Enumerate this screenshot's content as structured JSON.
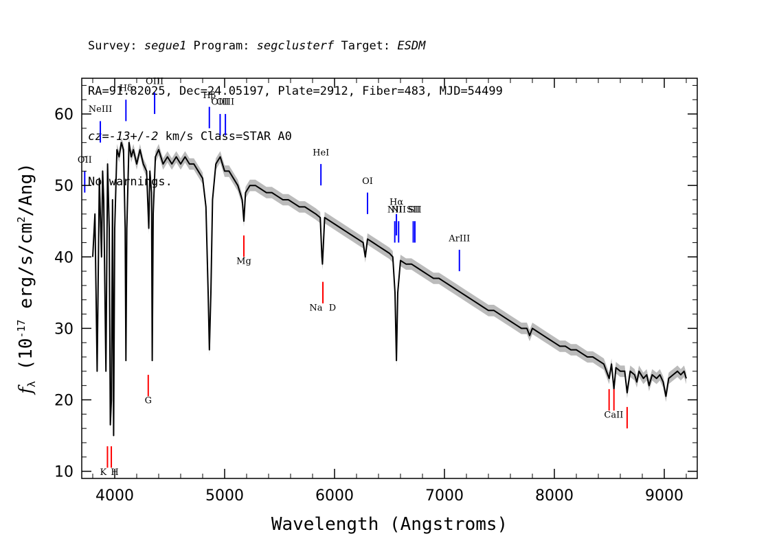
{
  "header": {
    "line1": [
      {
        "text": "Survey: ",
        "italic": false
      },
      {
        "text": "segue1",
        "italic": true
      },
      {
        "text": " Program: ",
        "italic": false
      },
      {
        "text": "segclusterf",
        "italic": true
      },
      {
        "text": " Target: ",
        "italic": false
      },
      {
        "text": "ESDM",
        "italic": true
      }
    ],
    "line2": "RA=91.82025, Dec=24.05197, Plate=2912, Fiber=483, MJD=54499",
    "line3": [
      {
        "text": "cz=",
        "italic": true
      },
      {
        "text": "-13",
        "italic": true
      },
      {
        "text": "+/-",
        "italic": false
      },
      {
        "text": "2",
        "italic": true
      },
      {
        "text": " km/s Class=STAR A0",
        "italic": false
      }
    ],
    "line4": "No warnings."
  },
  "chart_data": {
    "type": "line",
    "xlabel": "Wavelength (Angstroms)",
    "ylabel_parts": [
      "f",
      "λ",
      " (10",
      "-17",
      " erg/s/cm",
      "2",
      "/Ang)"
    ],
    "xlim": [
      3700,
      9300
    ],
    "ylim": [
      9,
      65
    ],
    "x_ticks": [
      4000,
      5000,
      6000,
      7000,
      8000,
      9000
    ],
    "y_ticks": [
      10,
      20,
      30,
      40,
      50,
      60
    ],
    "series": [
      {
        "color": "#000000",
        "error_color": "#bbbbbb",
        "points": [
          [
            3800,
            40
          ],
          [
            3820,
            46
          ],
          [
            3840,
            24
          ],
          [
            3860,
            51
          ],
          [
            3880,
            40
          ],
          [
            3890,
            52
          ],
          [
            3900,
            48
          ],
          [
            3920,
            24
          ],
          [
            3935,
            53
          ],
          [
            3950,
            44
          ],
          [
            3960,
            16.5
          ],
          [
            3970,
            20
          ],
          [
            3980,
            48
          ],
          [
            3990,
            15
          ],
          [
            4000,
            44
          ],
          [
            4020,
            55
          ],
          [
            4040,
            54
          ],
          [
            4060,
            56
          ],
          [
            4080,
            55
          ],
          [
            4095,
            44
          ],
          [
            4102,
            25.5
          ],
          [
            4110,
            44
          ],
          [
            4130,
            56
          ],
          [
            4150,
            54
          ],
          [
            4170,
            55
          ],
          [
            4200,
            53
          ],
          [
            4230,
            55
          ],
          [
            4260,
            53
          ],
          [
            4290,
            52
          ],
          [
            4310,
            44
          ],
          [
            4320,
            52
          ],
          [
            4335,
            49
          ],
          [
            4341,
            25.5
          ],
          [
            4350,
            46
          ],
          [
            4370,
            54
          ],
          [
            4400,
            55
          ],
          [
            4440,
            53
          ],
          [
            4480,
            54
          ],
          [
            4520,
            53
          ],
          [
            4560,
            54
          ],
          [
            4600,
            53
          ],
          [
            4640,
            54
          ],
          [
            4680,
            53
          ],
          [
            4720,
            53
          ],
          [
            4760,
            52
          ],
          [
            4800,
            51
          ],
          [
            4830,
            47
          ],
          [
            4850,
            35
          ],
          [
            4861,
            27
          ],
          [
            4875,
            35
          ],
          [
            4890,
            48
          ],
          [
            4920,
            53
          ],
          [
            4960,
            54
          ],
          [
            5000,
            52
          ],
          [
            5040,
            52
          ],
          [
            5080,
            51
          ],
          [
            5120,
            50
          ],
          [
            5160,
            48
          ],
          [
            5175,
            45
          ],
          [
            5190,
            49
          ],
          [
            5230,
            50
          ],
          [
            5280,
            50
          ],
          [
            5330,
            49.5
          ],
          [
            5380,
            49
          ],
          [
            5430,
            49
          ],
          [
            5480,
            48.5
          ],
          [
            5530,
            48
          ],
          [
            5580,
            48
          ],
          [
            5630,
            47.5
          ],
          [
            5680,
            47
          ],
          [
            5730,
            47
          ],
          [
            5780,
            46.5
          ],
          [
            5830,
            46
          ],
          [
            5870,
            45.5
          ],
          [
            5885,
            40
          ],
          [
            5890,
            39
          ],
          [
            5896,
            41
          ],
          [
            5910,
            45.5
          ],
          [
            5960,
            45
          ],
          [
            6010,
            44.5
          ],
          [
            6060,
            44
          ],
          [
            6110,
            43.5
          ],
          [
            6160,
            43
          ],
          [
            6210,
            42.5
          ],
          [
            6260,
            42
          ],
          [
            6280,
            40
          ],
          [
            6300,
            42.5
          ],
          [
            6350,
            42
          ],
          [
            6400,
            41.5
          ],
          [
            6450,
            41
          ],
          [
            6500,
            40.5
          ],
          [
            6530,
            40
          ],
          [
            6550,
            35
          ],
          [
            6563,
            25.5
          ],
          [
            6575,
            35
          ],
          [
            6600,
            39.5
          ],
          [
            6650,
            39
          ],
          [
            6700,
            39
          ],
          [
            6750,
            38.5
          ],
          [
            6800,
            38
          ],
          [
            6850,
            37.5
          ],
          [
            6900,
            37
          ],
          [
            6950,
            37
          ],
          [
            7000,
            36.5
          ],
          [
            7050,
            36
          ],
          [
            7100,
            35.5
          ],
          [
            7150,
            35
          ],
          [
            7200,
            34.5
          ],
          [
            7250,
            34
          ],
          [
            7300,
            33.5
          ],
          [
            7350,
            33
          ],
          [
            7400,
            32.5
          ],
          [
            7450,
            32.5
          ],
          [
            7500,
            32
          ],
          [
            7550,
            31.5
          ],
          [
            7600,
            31
          ],
          [
            7650,
            30.5
          ],
          [
            7700,
            30
          ],
          [
            7750,
            30
          ],
          [
            7775,
            29
          ],
          [
            7800,
            30
          ],
          [
            7850,
            29.5
          ],
          [
            7900,
            29
          ],
          [
            7950,
            28.5
          ],
          [
            8000,
            28
          ],
          [
            8050,
            27.5
          ],
          [
            8100,
            27.5
          ],
          [
            8150,
            27
          ],
          [
            8200,
            27
          ],
          [
            8250,
            26.5
          ],
          [
            8300,
            26
          ],
          [
            8350,
            26
          ],
          [
            8400,
            25.5
          ],
          [
            8450,
            25
          ],
          [
            8498,
            23
          ],
          [
            8520,
            25
          ],
          [
            8542,
            21.5
          ],
          [
            8560,
            24.5
          ],
          [
            8600,
            24
          ],
          [
            8640,
            24
          ],
          [
            8662,
            21
          ],
          [
            8690,
            24
          ],
          [
            8730,
            23.5
          ],
          [
            8750,
            22.5
          ],
          [
            8770,
            24
          ],
          [
            8810,
            23
          ],
          [
            8840,
            23.5
          ],
          [
            8862,
            22
          ],
          [
            8890,
            23.5
          ],
          [
            8930,
            23
          ],
          [
            8960,
            23.5
          ],
          [
            8990,
            22.5
          ],
          [
            9015,
            20.5
          ],
          [
            9040,
            23
          ],
          [
            9080,
            23.5
          ],
          [
            9120,
            24
          ],
          [
            9150,
            23.5
          ],
          [
            9180,
            24
          ],
          [
            9200,
            23
          ]
        ]
      }
    ],
    "emission_lines": [
      {
        "label": "OII",
        "x": 3727,
        "y1": 52,
        "y2": 49,
        "label_y": 53.2,
        "color": "#0000ff"
      },
      {
        "label": "NeIII",
        "x": 3869,
        "y1": 59,
        "y2": 56,
        "label_y": 60.3,
        "color": "#0000ff"
      },
      {
        "label": "Hδ",
        "x": 4102,
        "y1": 62,
        "y2": 59,
        "label_y": 63.2,
        "color": "#0000ff"
      },
      {
        "label": "OIII",
        "x": 4363,
        "y1": 63,
        "y2": 60,
        "label_y": 64.2,
        "color": "#0000ff"
      },
      {
        "label": "Hβ",
        "x": 4861,
        "y1": 61,
        "y2": 58,
        "label_y": 62.2,
        "color": "#0000ff"
      },
      {
        "label": "OIII",
        "x": 4959,
        "y1": 60,
        "y2": 57,
        "label_y": 61.3,
        "color": "#0000ff"
      },
      {
        "label": "OIII",
        "x": 5007,
        "y1": 60,
        "y2": 57,
        "label_y": 61.3,
        "color": "#0000ff"
      },
      {
        "label": "HeI",
        "x": 5876,
        "y1": 53,
        "y2": 50,
        "label_y": 54.2,
        "color": "#0000ff"
      },
      {
        "label": "OI",
        "x": 6300,
        "y1": 49,
        "y2": 46,
        "label_y": 50.2,
        "color": "#0000ff"
      },
      {
        "label": "NII",
        "x": 6548,
        "y1": 45,
        "y2": 42,
        "label_y": 46.2,
        "color": "#0000ff"
      },
      {
        "label": "Hα",
        "x": 6563,
        "y1": 46,
        "y2": 43,
        "label_y": 47.3,
        "color": "#0000ff"
      },
      {
        "label": "NII",
        "x": 6583,
        "y1": 45,
        "y2": 42,
        "label_y": 46.2,
        "color": "#0000ff"
      },
      {
        "label": "SII",
        "x": 6716,
        "y1": 45,
        "y2": 42,
        "label_y": 46.2,
        "color": "#0000ff"
      },
      {
        "label": "SII",
        "x": 6731,
        "y1": 45,
        "y2": 42,
        "label_y": 46.2,
        "color": "#0000ff"
      },
      {
        "label": "ArIII",
        "x": 7136,
        "y1": 41,
        "y2": 38,
        "label_y": 42.2,
        "color": "#0000ff"
      }
    ],
    "absorption_lines": [
      {
        "label": "K",
        "x": 3934,
        "y1": 13.5,
        "y2": 10.5,
        "label_y": 9.5,
        "color": "#ff0000"
      },
      {
        "label": "H",
        "x": 3969,
        "y1": 13.5,
        "y2": 10.5,
        "label_y": 9.5,
        "color": "#ff0000"
      },
      {
        "label": "G",
        "x": 4305,
        "y1": 23.5,
        "y2": 20.5,
        "label_y": 19.5,
        "color": "#ff0000"
      },
      {
        "label": "Mg",
        "x": 5175,
        "y1": 43,
        "y2": 40,
        "label_y": 39,
        "color": "#ff0000"
      },
      {
        "label": "Na",
        "x": 5894,
        "y1": 36.5,
        "y2": 33.5,
        "label_y": 32.5,
        "color": "#ff0000"
      },
      {
        "label": "D",
        "x": 5894,
        "y1": 36.5,
        "y2": 33.5,
        "label_y": 32.5,
        "color": "#ff0000"
      },
      {
        "label": "CaII",
        "x": 8498,
        "y1": 21.5,
        "y2": 18.5,
        "label_y": 17.5,
        "color": "#ff0000"
      },
      {
        "label": "CaII",
        "x": 8542,
        "y1": 21.5,
        "y2": 18.5,
        "label_y": 17.5,
        "color": "#ff0000"
      },
      {
        "label": "CaII",
        "x": 8662,
        "y1": 19,
        "y2": 16,
        "label_y": 17.5,
        "color": "#ff0000"
      }
    ]
  }
}
